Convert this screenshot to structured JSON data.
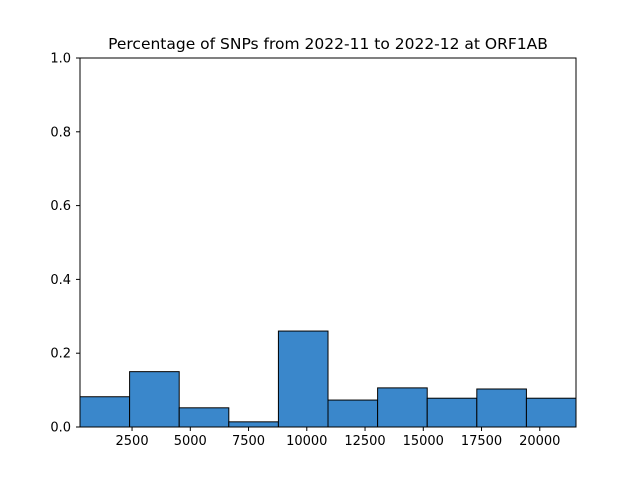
{
  "chart_data": {
    "type": "bar",
    "title": "Percentage of SNPs from 2022-11 to 2022-12 at ORF1AB",
    "xlabel": "",
    "ylabel": "",
    "xlim": [
      266,
      21555
    ],
    "ylim": [
      0,
      1.0
    ],
    "xticks": [
      2500,
      5000,
      7500,
      10000,
      12500,
      15000,
      17500,
      20000
    ],
    "xtick_labels": [
      "2500",
      "5000",
      "7500",
      "10000",
      "12500",
      "15000",
      "17500",
      "20000"
    ],
    "yticks": [
      0,
      0.2,
      0.4,
      0.6,
      0.8,
      1.0
    ],
    "ytick_labels": [
      "0.0",
      "0.2",
      "0.4",
      "0.6",
      "0.8",
      "1.0"
    ],
    "bins": [
      {
        "start": 266,
        "end": 2395,
        "value": 0.082
      },
      {
        "start": 2395,
        "end": 4524,
        "value": 0.15
      },
      {
        "start": 4524,
        "end": 6653,
        "value": 0.052
      },
      {
        "start": 6653,
        "end": 8782,
        "value": 0.014
      },
      {
        "start": 8782,
        "end": 10911,
        "value": 0.26
      },
      {
        "start": 10911,
        "end": 13040,
        "value": 0.073
      },
      {
        "start": 13040,
        "end": 15169,
        "value": 0.106
      },
      {
        "start": 15169,
        "end": 17298,
        "value": 0.078
      },
      {
        "start": 17298,
        "end": 19427,
        "value": 0.103
      },
      {
        "start": 19427,
        "end": 21555,
        "value": 0.078
      }
    ],
    "bar_color": "#3a87cb",
    "edge_color": "#000000",
    "grid": false,
    "legend": "none"
  }
}
